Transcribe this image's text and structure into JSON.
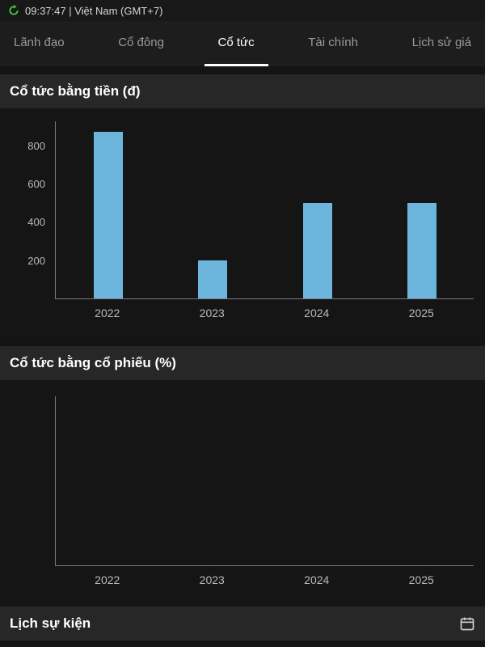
{
  "statusbar": {
    "time_location": "09:37:47 | Việt Nam (GMT+7)"
  },
  "tabs": {
    "items": [
      {
        "label": "Lãnh đạo"
      },
      {
        "label": "Cổ đông"
      },
      {
        "label": "Cổ tức"
      },
      {
        "label": "Tài chính"
      },
      {
        "label": "Lịch sử giá"
      }
    ],
    "active_index": 2
  },
  "sections": {
    "cash_dividend_title": "Cổ tức bằng tiền (đ)",
    "stock_dividend_title": "Cổ tức bằng cổ phiếu (%)",
    "event_calendar_title": "Lịch sự kiện"
  },
  "colors": {
    "bar": "#6CB5DD",
    "accent_green": "#45CC45"
  },
  "chart_data": [
    {
      "type": "bar",
      "title": "Cổ tức bằng tiền (đ)",
      "categories": [
        "2022",
        "2023",
        "2024",
        "2025"
      ],
      "values": [
        870,
        200,
        500,
        500
      ],
      "xlabel": "",
      "ylabel": "",
      "ylim": [
        0,
        930
      ],
      "yticks": [
        200,
        400,
        600,
        800
      ],
      "grid": false,
      "legend": false
    },
    {
      "type": "bar",
      "title": "Cổ tức bằng cổ phiếu (%)",
      "categories": [
        "2022",
        "2023",
        "2024",
        "2025"
      ],
      "values": [
        0,
        0,
        0,
        0
      ],
      "xlabel": "",
      "ylabel": "",
      "ylim": [
        0,
        1
      ],
      "yticks": [],
      "grid": false,
      "legend": false
    }
  ]
}
